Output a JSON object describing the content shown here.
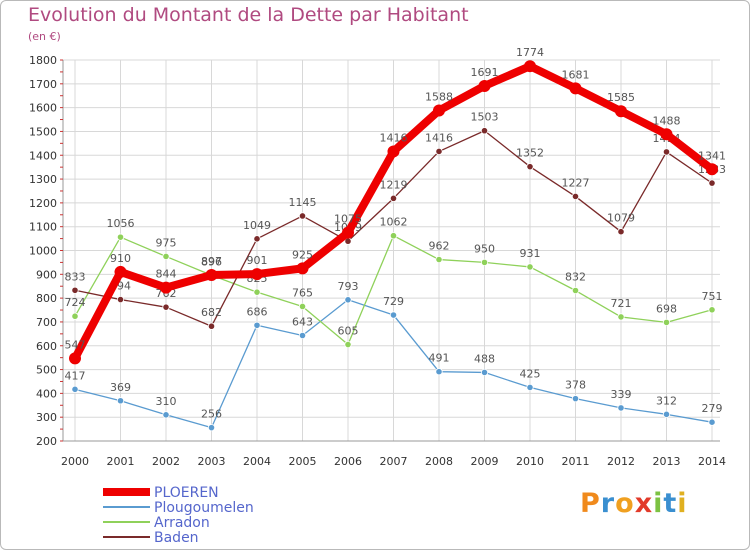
{
  "title": "Evolution du Montant de la Dette par Habitant",
  "subtitle": "(en €)",
  "logo_text": "Proxiti",
  "colors": {
    "title": "#b04a80",
    "grid": "#d8d8d8",
    "axis_text": "#333333",
    "label_text": "#555555"
  },
  "chart_data": {
    "type": "line",
    "title": "Evolution du Montant de la Dette par Habitant",
    "subtitle": "(en €)",
    "xlabel": "",
    "ylabel": "",
    "ylim": [
      200,
      1800
    ],
    "y_ticks": [
      200,
      300,
      400,
      500,
      600,
      700,
      800,
      900,
      1000,
      1100,
      1200,
      1300,
      1400,
      1500,
      1600,
      1700,
      1800
    ],
    "grid": true,
    "legend_position": "bottom-left",
    "x": [
      "2000",
      "2001",
      "2002",
      "2003",
      "2004",
      "2005",
      "2006",
      "2007",
      "2008",
      "2009",
      "2010",
      "2011",
      "2012",
      "2013",
      "2014"
    ],
    "series": [
      {
        "name": "Plougoumelen",
        "color": "#5a9bd0",
        "values": [
          417,
          369,
          310,
          256,
          686,
          643,
          793,
          729,
          491,
          488,
          425,
          378,
          339,
          312,
          279
        ]
      },
      {
        "name": "Arradon",
        "color": "#8fd15a",
        "values": [
          724,
          1056,
          975,
          896,
          825,
          765,
          605,
          1062,
          962,
          950,
          931,
          832,
          721,
          698,
          751
        ]
      },
      {
        "name": "Baden",
        "color": "#7a2a2a",
        "values": [
          833,
          794,
          762,
          682,
          1049,
          1145,
          1039,
          1219,
          1416,
          1503,
          1352,
          1227,
          1079,
          1414,
          1283
        ]
      },
      {
        "name": "PLOEREN",
        "color": "#ee0000",
        "values": [
          547,
          910,
          844,
          897,
          901,
          925,
          1075,
          1416,
          1588,
          1691,
          1774,
          1681,
          1585,
          1488,
          1341
        ]
      }
    ]
  }
}
